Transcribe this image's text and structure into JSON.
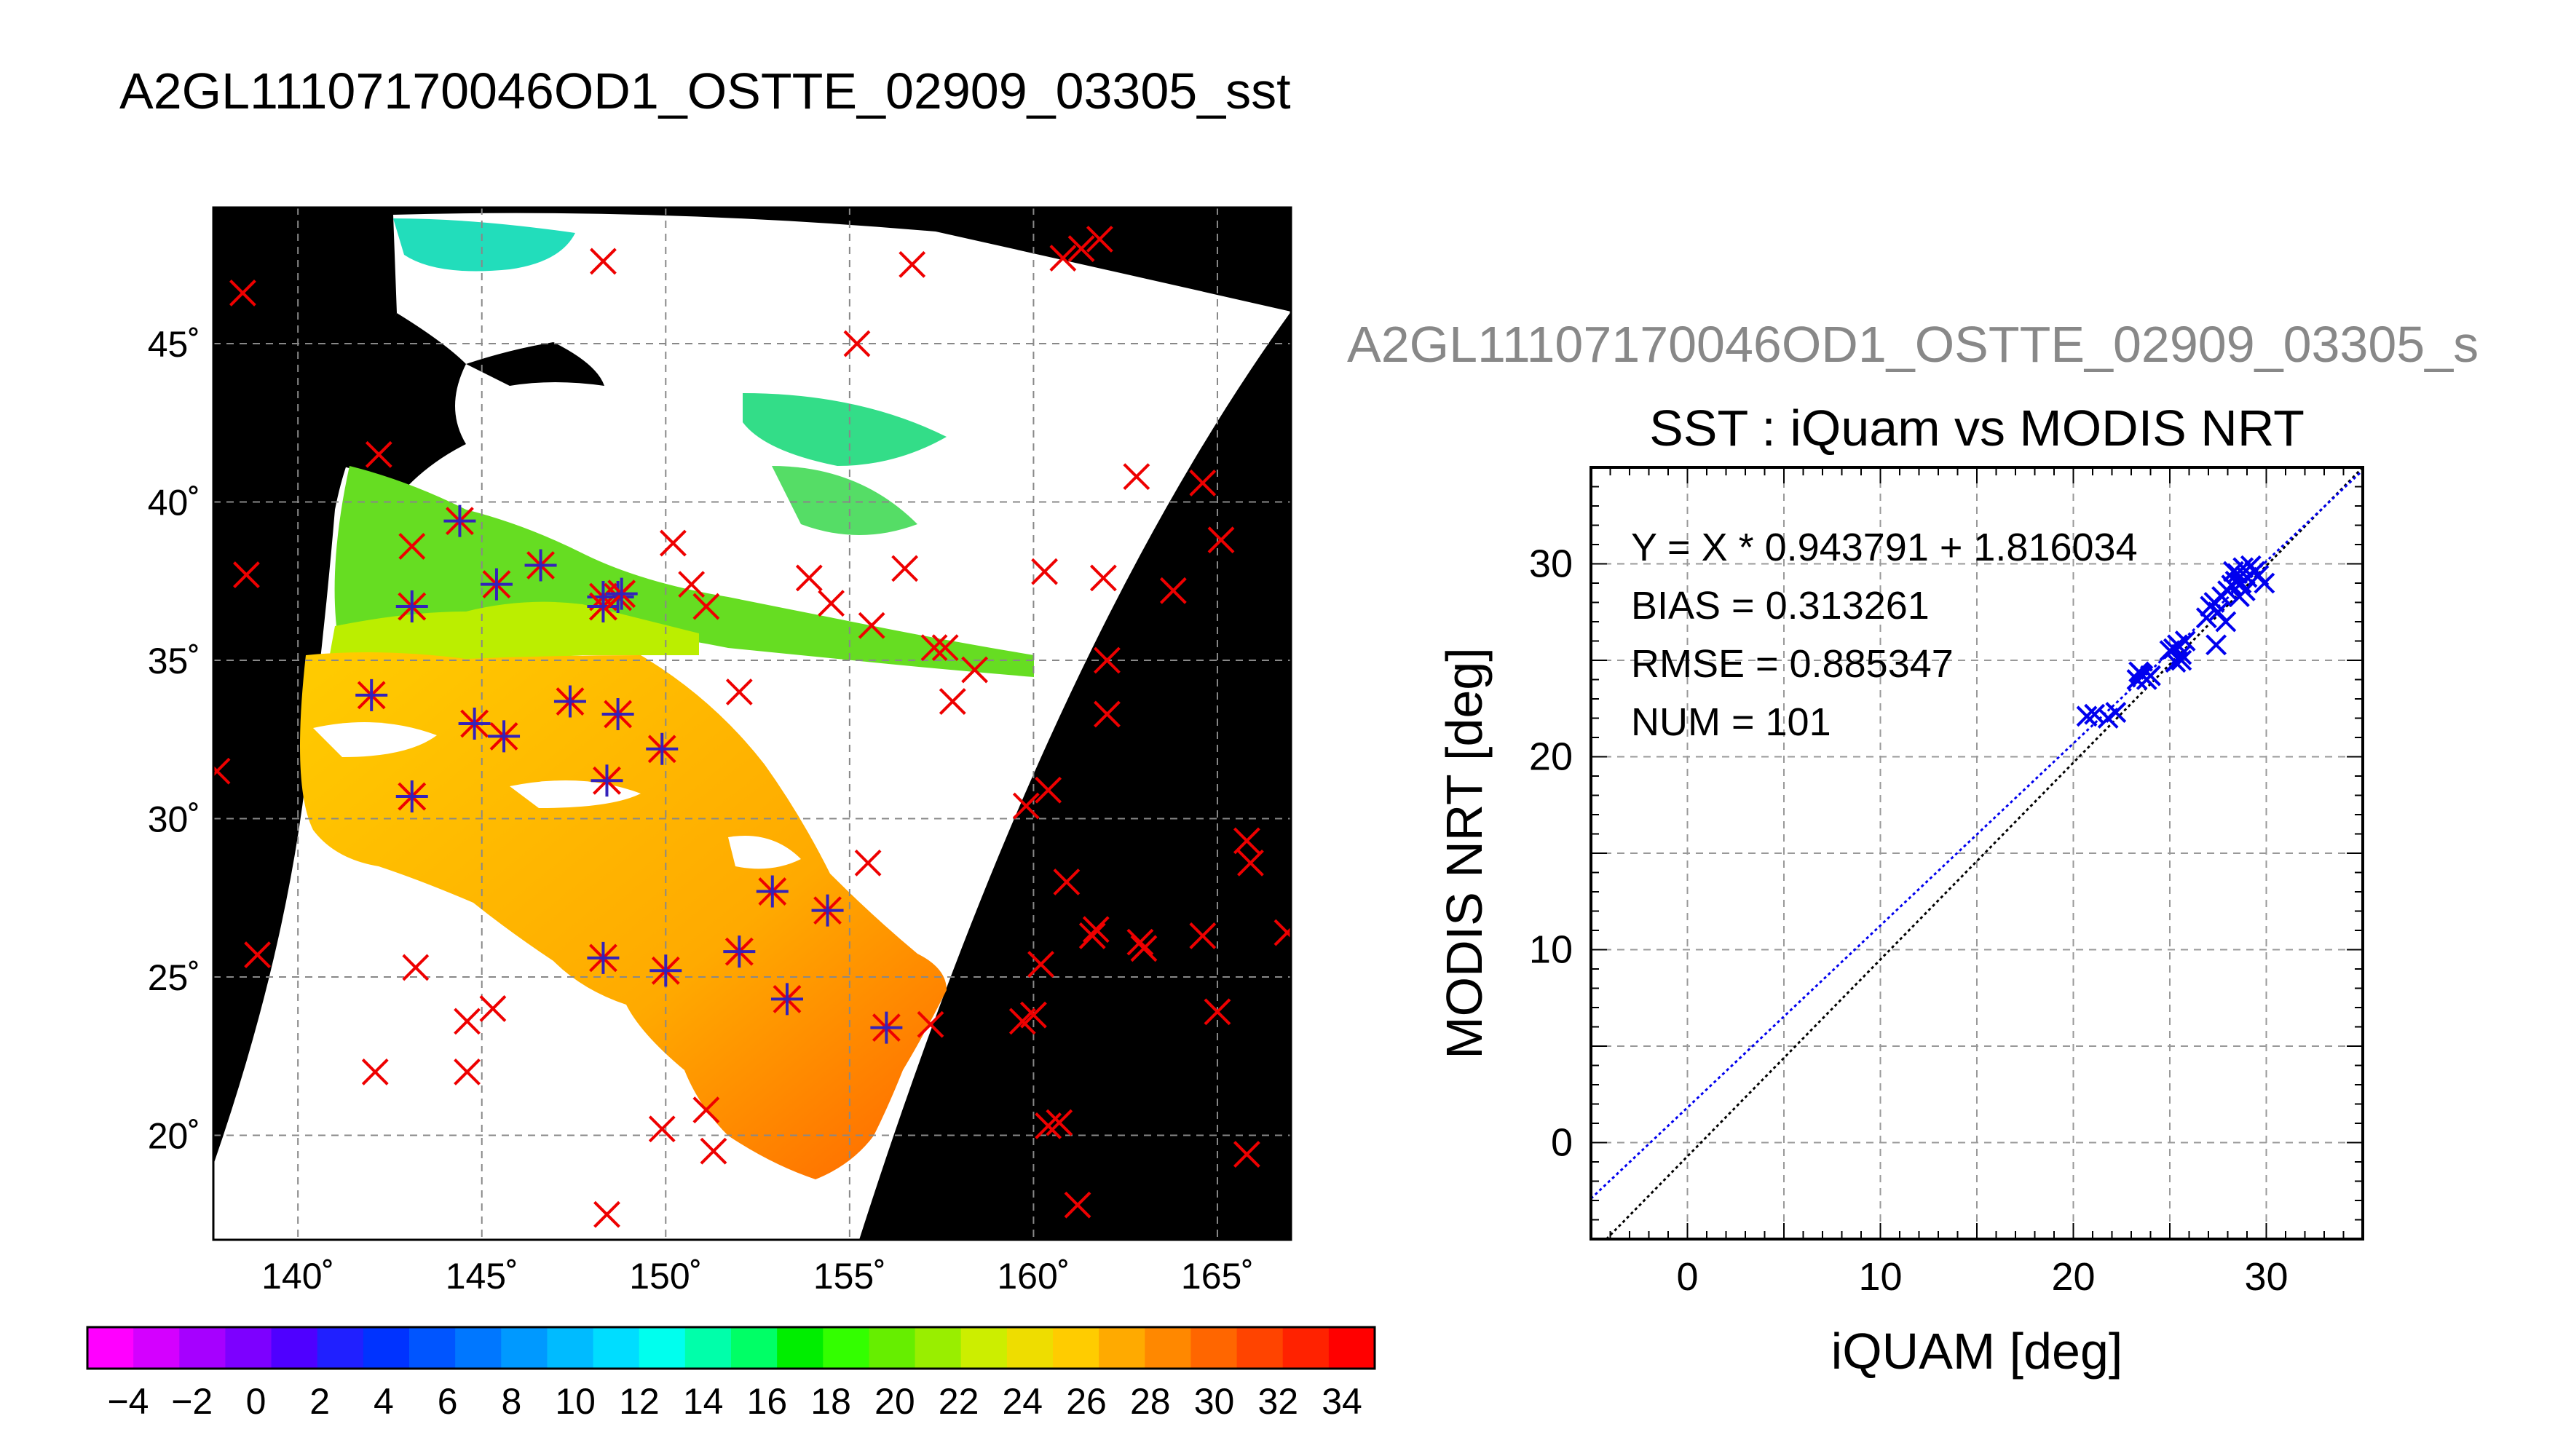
{
  "page": {
    "title": "A2GL11107170046OD1_OSTTE_02909_03305_sst"
  },
  "map_panel": {
    "lon_ticks": [
      "140˚",
      "145˚",
      "150˚",
      "155˚",
      "160˚",
      "165˚"
    ],
    "lat_ticks": [
      "20˚",
      "25˚",
      "30˚",
      "35˚",
      "40˚",
      "45˚"
    ]
  },
  "colorbar": {
    "labels": [
      "−4",
      "−2",
      "0",
      "2",
      "4",
      "6",
      "8",
      "10",
      "12",
      "14",
      "16",
      "18",
      "20",
      "22",
      "24",
      "26",
      "28",
      "30",
      "32",
      "34"
    ],
    "colors": [
      "#ff00ff",
      "#d400ff",
      "#a600ff",
      "#7d00ff",
      "#4f00ff",
      "#2020ff",
      "#0033ff",
      "#0055ff",
      "#0077ff",
      "#0099ff",
      "#00bbff",
      "#00ddff",
      "#00ffee",
      "#00ffaa",
      "#00ff66",
      "#00ee00",
      "#33ff00",
      "#66ee00",
      "#99ee00",
      "#ccee00",
      "#eedd00",
      "#ffcc00",
      "#ffaa00",
      "#ff8800",
      "#ff6600",
      "#ff4400",
      "#ff2200",
      "#ff0000"
    ]
  },
  "chart_data": [
    {
      "type": "map",
      "lon_range": [
        137.7,
        167
      ],
      "lat_range": [
        16.7,
        49.3
      ],
      "clipped_title": "A2GL11107170046OD1_OSTTE_02909_03305_s",
      "iquam_points": [
        [
          138.5,
          46.6
        ],
        [
          148.3,
          47.6
        ],
        [
          156.7,
          47.5
        ],
        [
          160.8,
          47.7
        ],
        [
          161.3,
          48.0
        ],
        [
          161.8,
          48.3
        ],
        [
          155.2,
          45.0
        ],
        [
          142.2,
          41.5
        ],
        [
          138.6,
          37.7
        ],
        [
          162.8,
          40.8
        ],
        [
          164.6,
          40.6
        ],
        [
          165.1,
          38.8
        ],
        [
          163.8,
          37.2
        ],
        [
          161.9,
          37.6
        ],
        [
          160.3,
          37.8
        ],
        [
          156.5,
          37.9
        ],
        [
          153.9,
          37.6
        ],
        [
          154.5,
          36.8
        ],
        [
          155.6,
          36.1
        ],
        [
          150.2,
          38.7
        ],
        [
          150.7,
          37.4
        ],
        [
          151.1,
          36.7
        ],
        [
          157.3,
          35.4
        ],
        [
          157.6,
          35.4
        ],
        [
          158.4,
          34.7
        ],
        [
          157.8,
          33.7
        ],
        [
          162.0,
          35.0
        ],
        [
          162.0,
          33.3
        ],
        [
          152.0,
          34.0
        ],
        [
          137.8,
          31.5
        ],
        [
          160.4,
          30.9
        ],
        [
          159.8,
          30.4
        ],
        [
          165.8,
          29.3
        ],
        [
          165.9,
          28.6
        ],
        [
          155.5,
          28.6
        ],
        [
          160.9,
          28.0
        ],
        [
          161.7,
          26.5
        ],
        [
          161.6,
          26.3
        ],
        [
          162.9,
          26.1
        ],
        [
          163.0,
          25.9
        ],
        [
          164.6,
          26.3
        ],
        [
          166.9,
          26.4
        ],
        [
          138.9,
          25.7
        ],
        [
          143.2,
          25.3
        ],
        [
          160.2,
          25.4
        ],
        [
          159.7,
          23.6
        ],
        [
          160.0,
          23.8
        ],
        [
          165.0,
          23.9
        ],
        [
          144.6,
          23.6
        ],
        [
          145.3,
          24.0
        ],
        [
          142.1,
          22.0
        ],
        [
          144.6,
          22.0
        ],
        [
          157.2,
          23.5
        ],
        [
          160.4,
          20.3
        ],
        [
          160.7,
          20.4
        ],
        [
          151.1,
          20.8
        ],
        [
          151.3,
          19.5
        ],
        [
          149.9,
          20.2
        ],
        [
          165.8,
          19.4
        ],
        [
          161.2,
          17.8
        ],
        [
          148.4,
          17.5
        ],
        [
          143.1,
          38.6
        ]
      ],
      "matched_points": [
        [
          144.4,
          39.4
        ],
        [
          143.1,
          36.7
        ],
        [
          145.4,
          37.4
        ],
        [
          146.6,
          38.0
        ],
        [
          148.3,
          37.0
        ],
        [
          148.3,
          36.7
        ],
        [
          148.7,
          37.0
        ],
        [
          148.8,
          37.1
        ],
        [
          142.0,
          33.9
        ],
        [
          144.8,
          33.0
        ],
        [
          145.6,
          32.6
        ],
        [
          147.4,
          33.7
        ],
        [
          148.7,
          33.3
        ],
        [
          148.4,
          31.2
        ],
        [
          149.9,
          32.2
        ],
        [
          143.1,
          30.7
        ],
        [
          152.9,
          27.7
        ],
        [
          154.4,
          27.1
        ],
        [
          152.0,
          25.8
        ],
        [
          153.3,
          24.3
        ],
        [
          148.3,
          25.6
        ],
        [
          150.0,
          25.2
        ],
        [
          156.0,
          23.4
        ]
      ]
    },
    {
      "type": "scatter",
      "title": "SST : iQuam vs MODIS NRT",
      "xlabel": "iQUAM [deg]",
      "ylabel": "MODIS NRT [deg]",
      "xlim": [
        -5,
        35
      ],
      "ylim": [
        -5,
        35
      ],
      "xticks": [
        0,
        10,
        20,
        30
      ],
      "yticks": [
        0,
        10,
        20,
        30
      ],
      "grid": true,
      "fit": {
        "slope": 0.943791,
        "intercept": 1.816034
      },
      "stats": [
        "Y = X * 0.943791 + 1.816034",
        "BIAS = 0.313261",
        "RMSE = 0.885347",
        "NUM = 101"
      ],
      "points": [
        [
          20.7,
          22.1
        ],
        [
          21.1,
          22.2
        ],
        [
          21.8,
          22.0
        ],
        [
          22.2,
          22.3
        ],
        [
          23.3,
          24.0
        ],
        [
          23.5,
          24.3
        ],
        [
          23.6,
          24.2
        ],
        [
          23.8,
          24.0
        ],
        [
          23.4,
          24.4
        ],
        [
          24.0,
          24.2
        ],
        [
          25.0,
          25.5
        ],
        [
          25.2,
          25.6
        ],
        [
          25.4,
          25.8
        ],
        [
          25.6,
          25.3
        ],
        [
          25.8,
          26.0
        ],
        [
          25.3,
          24.9
        ],
        [
          25.6,
          25.0
        ],
        [
          26.9,
          27.2
        ],
        [
          27.1,
          27.8
        ],
        [
          27.3,
          28.0
        ],
        [
          27.5,
          27.5
        ],
        [
          27.7,
          28.3
        ],
        [
          27.9,
          27.0
        ],
        [
          27.4,
          25.8
        ],
        [
          28.0,
          28.6
        ],
        [
          28.2,
          28.9
        ],
        [
          28.4,
          29.1
        ],
        [
          28.5,
          29.5
        ],
        [
          28.7,
          29.0
        ],
        [
          28.8,
          29.8
        ],
        [
          28.6,
          28.3
        ],
        [
          29.0,
          29.3
        ],
        [
          29.2,
          29.9
        ],
        [
          29.4,
          29.6
        ],
        [
          29.6,
          29.4
        ],
        [
          29.9,
          29.0
        ],
        [
          28.3,
          29.6
        ],
        [
          28.9,
          28.6
        ]
      ]
    }
  ]
}
